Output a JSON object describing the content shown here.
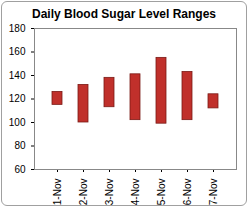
{
  "chart_data": {
    "type": "bar",
    "title": "Daily Blood Sugar Level Ranges",
    "categories": [
      "1-Nov",
      "2-Nov",
      "3-Nov",
      "4-Nov",
      "5-Nov",
      "6-Nov",
      "7-Nov"
    ],
    "values": [
      [
        115,
        126
      ],
      [
        100,
        132
      ],
      [
        113,
        138
      ],
      [
        102,
        141
      ],
      [
        99,
        155
      ],
      [
        102,
        143
      ],
      [
        112,
        124
      ]
    ],
    "color": "#c0302b",
    "ylim": [
      60,
      180
    ],
    "yticks": [
      60,
      80,
      100,
      120,
      140,
      160,
      180
    ],
    "grid": false
  }
}
